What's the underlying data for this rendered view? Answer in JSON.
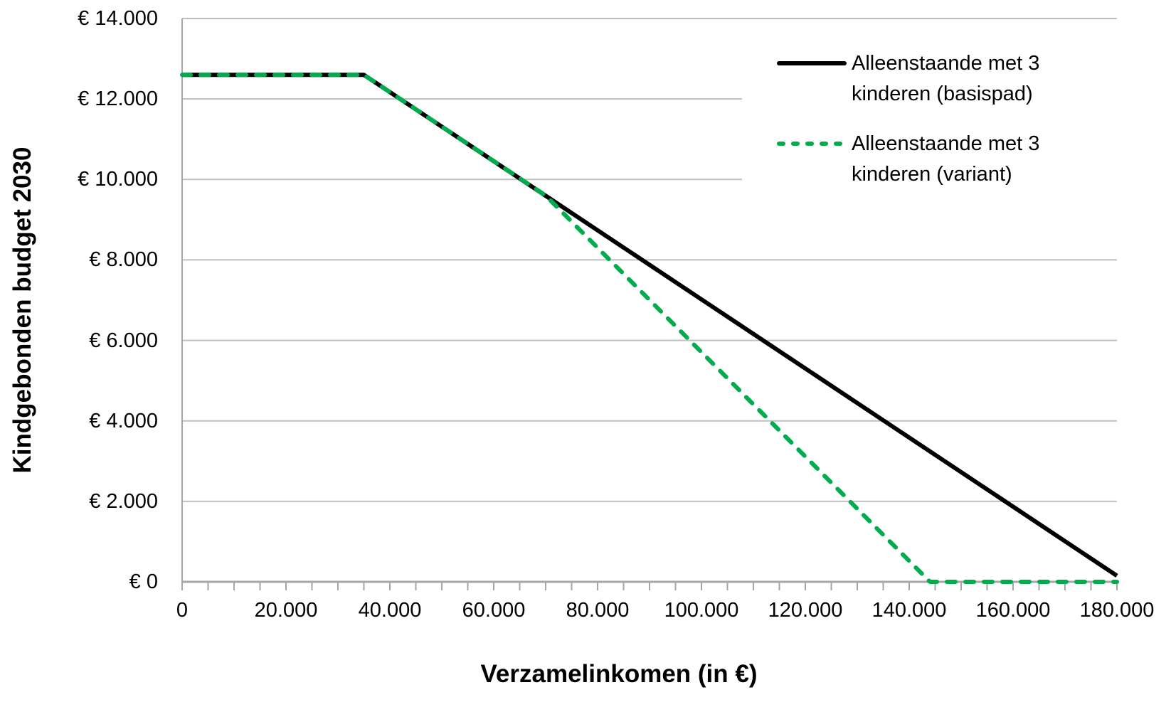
{
  "page": {
    "background": "#FFFFFF"
  },
  "chart_data": {
    "type": "line",
    "title": "",
    "xlabel": "Verzamelinkomen (in €)",
    "ylabel": "Kindgebonden budget 2030",
    "xlim": [
      0,
      180000
    ],
    "ylim": [
      0,
      14000
    ],
    "grid": "horizontal-only",
    "legend": {
      "position": "top-right-overlay"
    },
    "x_ticks": {
      "values": [
        0,
        20000,
        40000,
        60000,
        80000,
        100000,
        120000,
        140000,
        160000,
        180000
      ],
      "labels": [
        "0",
        "20.000",
        "40.000",
        "60.000",
        "80.000",
        "100.000",
        "120.000",
        "140.000",
        "160.000",
        "180.000"
      ],
      "minor_step": 5000
    },
    "y_ticks": {
      "values": [
        0,
        2000,
        4000,
        6000,
        8000,
        10000,
        12000,
        14000
      ],
      "labels": [
        "€ 0",
        "€ 2.000",
        "€ 4.000",
        "€ 6.000",
        "€ 8.000",
        "€ 10.000",
        "€ 12.000",
        "€ 14.000"
      ]
    },
    "colors": {
      "gridline": "#BFBFBF",
      "axis": "#A6A6A6",
      "text": "#000000"
    },
    "series": [
      {
        "name": "Alleenstaande met 3 kinderen (basispad)",
        "color": "#000000",
        "dash": "solid",
        "points": [
          [
            0,
            12600
          ],
          [
            35000,
            12600
          ],
          [
            180000,
            150
          ]
        ]
      },
      {
        "name": "Alleenstaande met 3 kinderen (variant)",
        "color": "#00AC4E",
        "dash": "dashed",
        "points": [
          [
            0,
            12600
          ],
          [
            35000,
            12600
          ],
          [
            70000,
            9600
          ],
          [
            144000,
            0
          ],
          [
            180000,
            0
          ]
        ]
      }
    ]
  }
}
